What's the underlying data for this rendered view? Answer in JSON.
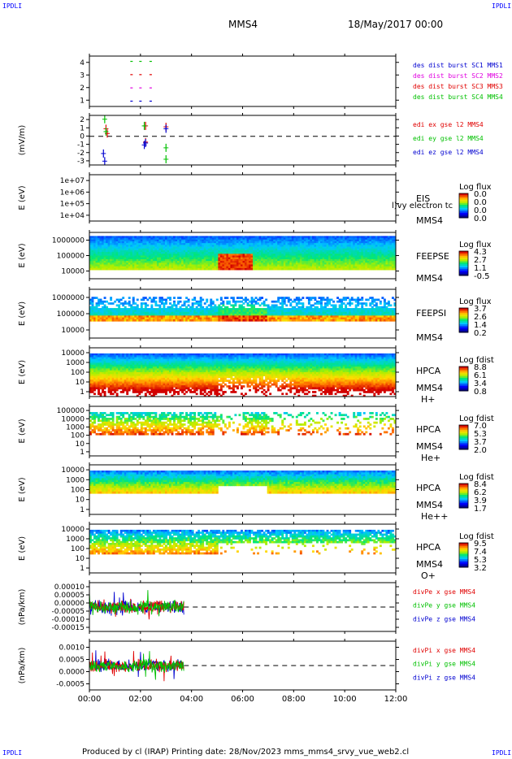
{
  "corner_label": "IPDLI",
  "header": {
    "spacecraft": "MMS4",
    "date": "18/May/2017 00:00"
  },
  "footer": {
    "text": "Produced by cl (IRAP)   Printing date: 28/Nov/2023   mms_mms4_srvy_vue_web2.cl"
  },
  "colors": {
    "red": "#e00000",
    "magenta": "#e000e0",
    "green": "#00c000",
    "blue": "#0000d0",
    "legend_blue": "#0000ff"
  },
  "chart_data": [
    {
      "type": "scatter",
      "id": "burst",
      "yticks": [
        "1",
        "2",
        "3",
        "4"
      ],
      "ylim": [
        0.6,
        4.4
      ],
      "legend": [
        {
          "label": "des dist burst SC1 MMS1",
          "color": "#0000d0"
        },
        {
          "label": "des dist burst SC2 MMS2",
          "color": "#e000e0"
        },
        {
          "label": "des dist burst SC3 MMS3",
          "color": "#e00000"
        },
        {
          "label": "des dist burst SC4 MMS4",
          "color": "#00c000"
        }
      ],
      "x_hours": [
        1.65,
        2.0,
        2.4
      ],
      "series": [
        {
          "y": 1,
          "color": "#0000d0"
        },
        {
          "y": 2,
          "color": "#e000e0"
        },
        {
          "y": 3,
          "color": "#e00000"
        },
        {
          "y": 4,
          "color": "#00c000"
        }
      ]
    },
    {
      "type": "line",
      "id": "edi",
      "ylabel": "(mV/m)",
      "yticks": [
        "-3",
        "-2",
        "-1",
        "0",
        "1",
        "2"
      ],
      "ylim": [
        -3,
        2.2
      ],
      "legend": [
        {
          "label": "edi ex gse l2 MMS4",
          "color": "#e00000"
        },
        {
          "label": "edi ey gse l2 MMS4",
          "color": "#00c000"
        },
        {
          "label": "edi ez gse l2 MMS4",
          "color": "#0000d0"
        }
      ],
      "series": [
        {
          "name": "edi ex gse l2 MMS4",
          "color": "#e00000",
          "points": [
            [
              0.65,
              0.8
            ],
            [
              0.7,
              0.3
            ],
            [
              2.2,
              -0.6
            ],
            [
              2.2,
              1.1
            ],
            [
              3.0,
              1.0
            ]
          ]
        },
        {
          "name": "edi ey gse l2 MMS4",
          "color": "#00c000",
          "points": [
            [
              0.6,
              1.8
            ],
            [
              0.65,
              0.5
            ],
            [
              2.15,
              1.1
            ],
            [
              3.0,
              -1.2
            ],
            [
              3.0,
              -2.4
            ]
          ]
        },
        {
          "name": "edi ez gse l2 MMS4",
          "color": "#0000d0",
          "points": [
            [
              0.55,
              -1.8
            ],
            [
              0.6,
              -2.6
            ],
            [
              2.15,
              -0.9
            ],
            [
              2.2,
              -0.7
            ],
            [
              3.0,
              0.8
            ]
          ]
        }
      ]
    },
    {
      "type": "heatmap",
      "id": "eis",
      "ylabel": "E (eV)",
      "yticks": [
        "1e+04",
        "1e+05",
        "1e+06",
        "1e+07"
      ],
      "labels": [
        "EIS",
        "MMS4"
      ],
      "overlay_text": "l)vy electron tc",
      "colorbar": {
        "title": "Log flux",
        "ticks": [
          "0.0",
          "0.0",
          "0.0",
          "0.0"
        ]
      }
    },
    {
      "type": "heatmap",
      "id": "feepse",
      "ylabel": "E (eV)",
      "yticks": [
        "10000",
        "100000",
        "1000000"
      ],
      "labels": [
        "FEEPSE",
        "MMS4"
      ],
      "colorbar": {
        "title": "Log flux",
        "ticks": [
          "4.3",
          "2.7",
          "1.1",
          "-0.5"
        ]
      },
      "hot_intervals_h": [
        [
          5.0,
          6.4
        ]
      ]
    },
    {
      "type": "heatmap",
      "id": "feepsi",
      "ylabel": "E (eV)",
      "yticks": [
        "10000",
        "100000",
        "1000000"
      ],
      "labels": [
        "FEEPSI",
        "MMS4"
      ],
      "colorbar": {
        "title": "Log flux",
        "ticks": [
          "3.7",
          "2.6",
          "1.4",
          "0.2"
        ]
      }
    },
    {
      "type": "heatmap",
      "id": "hpca_h",
      "ylabel": "E (eV)",
      "yticks": [
        "1",
        "10",
        "100",
        "1000",
        "10000"
      ],
      "labels": [
        "HPCA",
        "MMS4",
        "H+"
      ],
      "colorbar": {
        "title": "Log fdist",
        "ticks": [
          "8.8",
          "6.1",
          "3.4",
          "0.8"
        ]
      }
    },
    {
      "type": "heatmap",
      "id": "hpca_he",
      "ylabel": "E (eV)",
      "yticks": [
        "1",
        "10",
        "100",
        "1000",
        "10000",
        "100000"
      ],
      "labels": [
        "HPCA",
        "MMS4",
        "He+"
      ],
      "colorbar": {
        "title": "Log fdist",
        "ticks": [
          "7.0",
          "5.3",
          "3.7",
          "2.0"
        ]
      }
    },
    {
      "type": "heatmap",
      "id": "hpca_he2",
      "ylabel": "E (eV)",
      "yticks": [
        "1",
        "10",
        "100",
        "1000",
        "10000"
      ],
      "labels": [
        "HPCA",
        "MMS4",
        "He++"
      ],
      "colorbar": {
        "title": "Log fdist",
        "ticks": [
          "8.4",
          "6.2",
          "3.9",
          "1.7"
        ]
      }
    },
    {
      "type": "heatmap",
      "id": "hpca_o",
      "ylabel": "E (eV)",
      "yticks": [
        "1",
        "10",
        "100",
        "1000",
        "10000"
      ],
      "labels": [
        "HPCA",
        "MMS4",
        "O+"
      ],
      "colorbar": {
        "title": "Log fdist",
        "ticks": [
          "9.5",
          "7.4",
          "5.3",
          "3.2"
        ]
      }
    },
    {
      "type": "line",
      "id": "divpe",
      "ylabel": "(nPa/km)",
      "yticks": [
        "-0.00015",
        "-0.00010",
        "-0.00005",
        "0.00000",
        "0.00005",
        "0.00010"
      ],
      "ylim": [
        -0.00015,
        0.00015
      ],
      "data_end_h": 3.7,
      "legend": [
        {
          "label": "divPe x gse MMS4",
          "color": "#e00000"
        },
        {
          "label": "divPe y gse MMS4",
          "color": "#00c000"
        },
        {
          "label": "divPe z gse MMS4",
          "color": "#0000d0"
        }
      ]
    },
    {
      "type": "line",
      "id": "divpi",
      "ylabel": "(nPa/km)",
      "yticks": [
        "-0.0005",
        "0.0000",
        "0.0005",
        "0.0010"
      ],
      "ylim": [
        -0.0008,
        0.0012
      ],
      "data_end_h": 3.7,
      "legend": [
        {
          "label": "divPi x gse MMS4",
          "color": "#e00000"
        },
        {
          "label": "divPi y gse MMS4",
          "color": "#00c000"
        },
        {
          "label": "divPi z gse MMS4",
          "color": "#0000d0"
        }
      ]
    }
  ],
  "x_axis": {
    "ticks": [
      "00:00",
      "02:00",
      "04:00",
      "06:00",
      "08:00",
      "10:00",
      "12:00"
    ],
    "range_h": [
      0,
      12
    ]
  }
}
